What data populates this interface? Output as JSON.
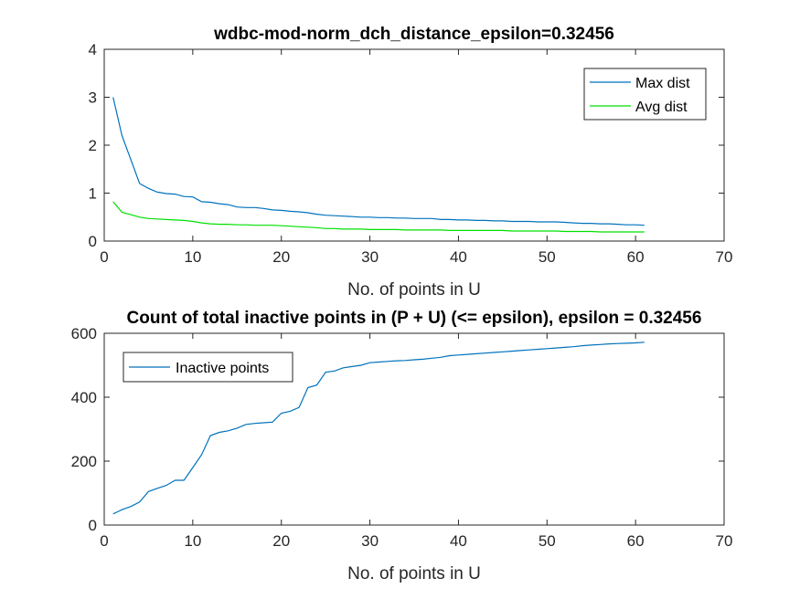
{
  "chart_data": [
    {
      "type": "line",
      "title": "wdbc-mod-norm_dch_distance_epsilon=0.32456",
      "xlabel": "No. of points in U",
      "ylabel": "",
      "xlim": [
        0,
        70
      ],
      "ylim": [
        0,
        4
      ],
      "xticks": [
        0,
        10,
        20,
        30,
        40,
        50,
        60,
        70
      ],
      "yticks": [
        0,
        1,
        2,
        3,
        4
      ],
      "grid": false,
      "legend_position": "top-right",
      "series": [
        {
          "name": "Max dist",
          "color": "#0072BD",
          "x": [
            1,
            2,
            3,
            4,
            5,
            6,
            7,
            8,
            9,
            10,
            11,
            12,
            13,
            14,
            15,
            16,
            17,
            18,
            19,
            20,
            21,
            22,
            23,
            24,
            25,
            26,
            27,
            28,
            29,
            30,
            31,
            32,
            33,
            34,
            35,
            36,
            37,
            38,
            39,
            40,
            41,
            42,
            43,
            44,
            45,
            46,
            47,
            48,
            49,
            50,
            51,
            52,
            53,
            54,
            55,
            56,
            57,
            58,
            59,
            60,
            61
          ],
          "values": [
            3.0,
            2.2,
            1.7,
            1.2,
            1.1,
            1.02,
            0.99,
            0.98,
            0.93,
            0.92,
            0.82,
            0.81,
            0.78,
            0.76,
            0.71,
            0.7,
            0.7,
            0.68,
            0.65,
            0.64,
            0.62,
            0.61,
            0.59,
            0.56,
            0.54,
            0.53,
            0.52,
            0.51,
            0.5,
            0.5,
            0.49,
            0.49,
            0.48,
            0.48,
            0.47,
            0.47,
            0.47,
            0.45,
            0.45,
            0.44,
            0.44,
            0.43,
            0.43,
            0.42,
            0.42,
            0.41,
            0.41,
            0.41,
            0.4,
            0.4,
            0.4,
            0.39,
            0.38,
            0.37,
            0.37,
            0.36,
            0.36,
            0.35,
            0.34,
            0.34,
            0.33
          ]
        },
        {
          "name": "Avg dist",
          "color": "#00E000",
          "x": [
            1,
            2,
            3,
            4,
            5,
            6,
            7,
            8,
            9,
            10,
            11,
            12,
            13,
            14,
            15,
            16,
            17,
            18,
            19,
            20,
            21,
            22,
            23,
            24,
            25,
            26,
            27,
            28,
            29,
            30,
            31,
            32,
            33,
            34,
            35,
            36,
            37,
            38,
            39,
            40,
            41,
            42,
            43,
            44,
            45,
            46,
            47,
            48,
            49,
            50,
            51,
            52,
            53,
            54,
            55,
            56,
            57,
            58,
            59,
            60,
            61
          ],
          "values": [
            0.82,
            0.6,
            0.55,
            0.5,
            0.47,
            0.46,
            0.45,
            0.44,
            0.43,
            0.41,
            0.38,
            0.36,
            0.35,
            0.35,
            0.34,
            0.34,
            0.33,
            0.33,
            0.33,
            0.32,
            0.31,
            0.3,
            0.29,
            0.28,
            0.26,
            0.26,
            0.25,
            0.25,
            0.25,
            0.24,
            0.24,
            0.24,
            0.24,
            0.23,
            0.23,
            0.23,
            0.23,
            0.23,
            0.22,
            0.22,
            0.22,
            0.22,
            0.22,
            0.22,
            0.22,
            0.21,
            0.21,
            0.21,
            0.21,
            0.21,
            0.21,
            0.2,
            0.2,
            0.2,
            0.2,
            0.19,
            0.19,
            0.19,
            0.19,
            0.19,
            0.19
          ]
        }
      ]
    },
    {
      "type": "line",
      "title": "Count of total inactive points in (P + U) (<= epsilon), epsilon = 0.32456",
      "xlabel": "No. of points in U",
      "ylabel": "",
      "xlim": [
        0,
        70
      ],
      "ylim": [
        0,
        600
      ],
      "xticks": [
        0,
        10,
        20,
        30,
        40,
        50,
        60,
        70
      ],
      "yticks": [
        0,
        200,
        400,
        600
      ],
      "grid": false,
      "legend_position": "top-left",
      "series": [
        {
          "name": "Inactive points",
          "color": "#0072BD",
          "x": [
            1,
            2,
            3,
            4,
            5,
            6,
            7,
            8,
            9,
            10,
            11,
            12,
            13,
            14,
            15,
            16,
            17,
            18,
            19,
            20,
            21,
            22,
            23,
            24,
            25,
            26,
            27,
            28,
            29,
            30,
            31,
            32,
            33,
            34,
            35,
            36,
            37,
            38,
            39,
            40,
            41,
            42,
            43,
            44,
            45,
            46,
            47,
            48,
            49,
            50,
            51,
            52,
            53,
            54,
            55,
            56,
            57,
            58,
            59,
            60,
            61
          ],
          "values": [
            35,
            48,
            58,
            72,
            105,
            115,
            124,
            140,
            140,
            180,
            220,
            280,
            290,
            295,
            303,
            315,
            318,
            320,
            322,
            350,
            356,
            368,
            430,
            438,
            478,
            482,
            492,
            496,
            500,
            508,
            510,
            512,
            514,
            515,
            517,
            519,
            522,
            525,
            530,
            532,
            534,
            536,
            538,
            540,
            542,
            544,
            546,
            548,
            550,
            552,
            554,
            556,
            558,
            561,
            563,
            565,
            567,
            568,
            569,
            570,
            572
          ]
        }
      ]
    }
  ]
}
